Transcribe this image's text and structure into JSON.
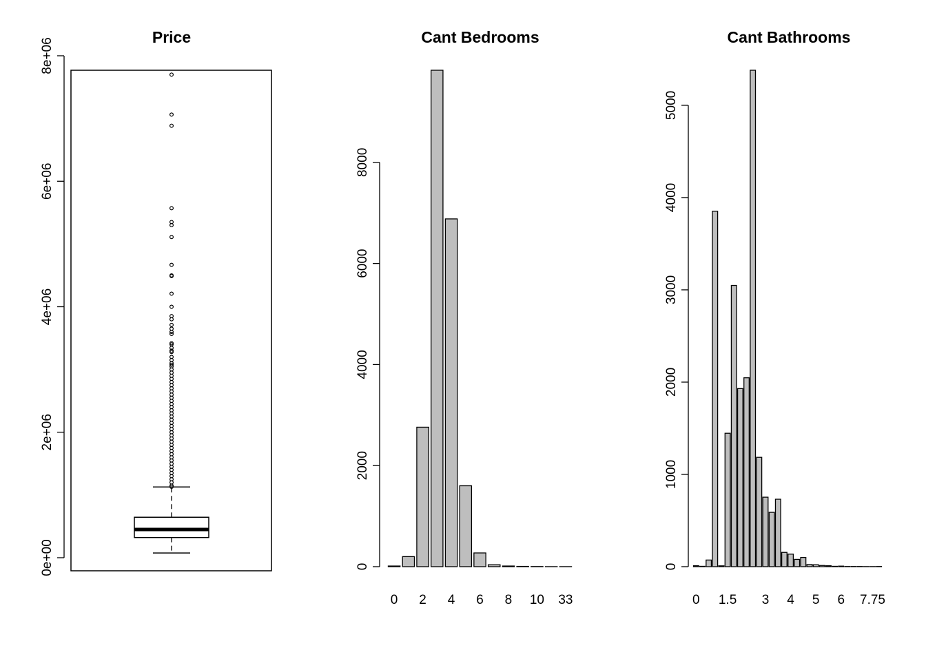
{
  "chart_data": [
    {
      "type": "box",
      "title": "Price",
      "xlabel": "",
      "ylabel": "",
      "ylim": [
        0,
        8000000
      ],
      "yticks": [
        0,
        2000000,
        4000000,
        6000000,
        8000000
      ],
      "ytick_labels": [
        "0e+00",
        "2e+06",
        "4e+06",
        "6e+06",
        "8e+06"
      ],
      "stats": {
        "min": 75000,
        "q1": 322000,
        "median": 450000,
        "q3": 645000,
        "whisker_high": 1127000
      },
      "outliers": [
        7700000,
        7062500,
        6885000,
        5570000,
        5350000,
        5300000,
        5110800,
        4668000,
        4500000,
        4489000,
        4208000,
        4000000,
        3850000,
        3800000,
        3710000,
        3650000,
        3600000,
        3567000,
        3418800,
        3400000,
        3345000,
        3300000,
        3278000,
        3200000,
        3150000,
        3100000,
        3075000,
        3050000,
        3000000,
        2950000,
        2900000,
        2850000,
        2800000,
        2750000,
        2700000,
        2650000,
        2600000,
        2550000,
        2500000,
        2450000,
        2400000,
        2350000,
        2300000,
        2250000,
        2200000,
        2150000,
        2100000,
        2050000,
        2000000,
        1950000,
        1900000,
        1850000,
        1800000,
        1750000,
        1700000,
        1650000,
        1600000,
        1550000,
        1500000,
        1450000,
        1400000,
        1350000,
        1300000,
        1250000,
        1200000,
        1150000,
        1130000
      ]
    },
    {
      "type": "bar",
      "title": "Cant Bedrooms",
      "xlabel": "",
      "ylabel": "",
      "ylim": [
        0,
        9824
      ],
      "yticks": [
        0,
        2000,
        4000,
        6000,
        8000
      ],
      "categories": [
        "0",
        "1",
        "2",
        "3",
        "4",
        "5",
        "6",
        "7",
        "8",
        "9",
        "10",
        "11",
        "33"
      ],
      "values": [
        13,
        199,
        2760,
        9824,
        6882,
        1601,
        272,
        38,
        13,
        6,
        3,
        1,
        1
      ],
      "x_tick_labels_shown": [
        "0",
        "2",
        "4",
        "6",
        "8",
        "10",
        "33"
      ]
    },
    {
      "type": "bar",
      "title": "Cant Bathrooms",
      "xlabel": "",
      "ylabel": "",
      "ylim": [
        0,
        5380
      ],
      "yticks": [
        0,
        1000,
        2000,
        3000,
        4000,
        5000
      ],
      "categories": [
        "0",
        "0.5",
        "0.75",
        "1",
        "1.25",
        "1.5",
        "1.75",
        "2",
        "2.25",
        "2.5",
        "2.75",
        "3",
        "3.25",
        "3.5",
        "3.75",
        "4",
        "4.25",
        "4.5",
        "4.75",
        "5",
        "5.25",
        "5.5",
        "5.75",
        "6",
        "6.25",
        "6.5",
        "6.75",
        "7.5",
        "7.75",
        "8"
      ],
      "values": [
        10,
        4,
        72,
        3852,
        9,
        1446,
        3048,
        1930,
        2047,
        5380,
        1185,
        753,
        589,
        731,
        155,
        136,
        79,
        100,
        23,
        21,
        13,
        10,
        4,
        6,
        2,
        2,
        2,
        1,
        1,
        2
      ],
      "x_tick_labels_shown": [
        "0",
        "1.5",
        "3",
        "4",
        "5",
        "6",
        "7.75"
      ]
    }
  ]
}
